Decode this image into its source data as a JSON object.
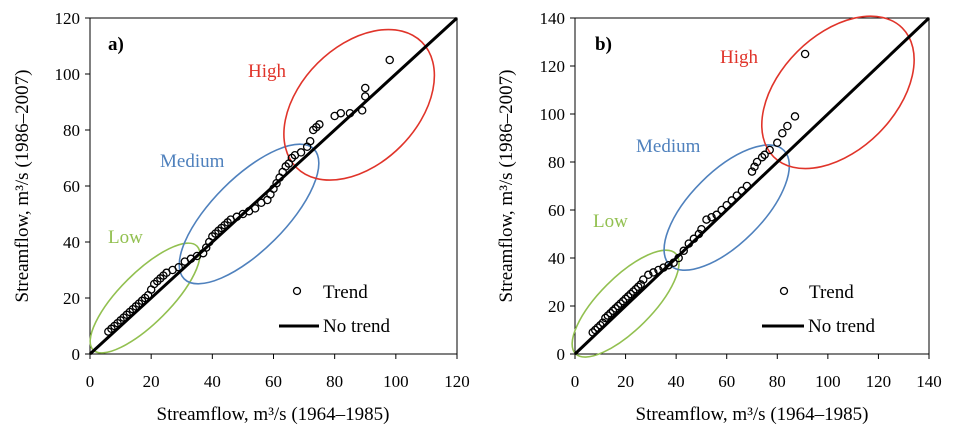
{
  "chart_data": [
    {
      "type": "scatter",
      "panel_label": "a)",
      "xlabel": "Streamflow, m³/s (1964–1985)",
      "ylabel": "Streamflow, m³/s (1986–2007)",
      "xlim": [
        0,
        120
      ],
      "ylim": [
        0,
        120
      ],
      "xticks": [
        "0",
        "20",
        "40",
        "60",
        "80",
        "100",
        "120"
      ],
      "yticks": [
        "0",
        "20",
        "40",
        "60",
        "80",
        "100",
        "120"
      ],
      "grid": false,
      "legend_placement": "bottom-right",
      "legend": {
        "trend": "Trend",
        "no_trend": "No trend"
      },
      "series": [
        {
          "name": "Trend",
          "marker": "open-circle",
          "points": [
            [
              6,
              8
            ],
            [
              7,
              9
            ],
            [
              8,
              10
            ],
            [
              9,
              11
            ],
            [
              10,
              12
            ],
            [
              11,
              13
            ],
            [
              12,
              14
            ],
            [
              13,
              15
            ],
            [
              14,
              16
            ],
            [
              15,
              17
            ],
            [
              16,
              18
            ],
            [
              17,
              19
            ],
            [
              18,
              20
            ],
            [
              19,
              21
            ],
            [
              20,
              23
            ],
            [
              21,
              25
            ],
            [
              22,
              26
            ],
            [
              23,
              27
            ],
            [
              24,
              28
            ],
            [
              25,
              29
            ],
            [
              27,
              30
            ],
            [
              29,
              31
            ],
            [
              31,
              33
            ],
            [
              33,
              34
            ],
            [
              35,
              35
            ],
            [
              37,
              36
            ],
            [
              38,
              38
            ],
            [
              39,
              40
            ],
            [
              40,
              42
            ],
            [
              41,
              43
            ],
            [
              42,
              44
            ],
            [
              43,
              45
            ],
            [
              44,
              46
            ],
            [
              45,
              47
            ],
            [
              46,
              48
            ],
            [
              48,
              49
            ],
            [
              50,
              50
            ],
            [
              52,
              51
            ],
            [
              54,
              52
            ],
            [
              56,
              54
            ],
            [
              58,
              55
            ],
            [
              59,
              57
            ],
            [
              60,
              59
            ],
            [
              61,
              61
            ],
            [
              62,
              63
            ],
            [
              63,
              65
            ],
            [
              64,
              67
            ],
            [
              65,
              68
            ],
            [
              66,
              70
            ],
            [
              67,
              71
            ],
            [
              69,
              72
            ],
            [
              71,
              74
            ],
            [
              72,
              76
            ],
            [
              73,
              80
            ],
            [
              74,
              81
            ],
            [
              75,
              82
            ],
            [
              80,
              85
            ],
            [
              82,
              86
            ],
            [
              85,
              86
            ],
            [
              89,
              87
            ],
            [
              90,
              92
            ],
            [
              90,
              95
            ],
            [
              98,
              105
            ]
          ]
        },
        {
          "name": "No trend",
          "type": "line",
          "points": [
            [
              0,
              0
            ],
            [
              120,
              120
            ]
          ]
        }
      ],
      "annotations": [
        {
          "label": "Low",
          "color": "#92c050",
          "region": {
            "cx": 18,
            "cy": 20,
            "rx": 24,
            "ry": 9,
            "angle": 45
          }
        },
        {
          "label": "Medium",
          "color": "#4f81bd",
          "region": {
            "cx": 52,
            "cy": 50,
            "rx": 30,
            "ry": 13,
            "angle": 45
          }
        },
        {
          "label": "High",
          "color": "#e0342a",
          "region": {
            "cx": 88,
            "cy": 89,
            "rx": 29,
            "ry": 21,
            "angle": 45
          }
        }
      ]
    },
    {
      "type": "scatter",
      "panel_label": "b)",
      "xlabel": "Streamflow, m³/s (1964–1985)",
      "ylabel": "Streamflow, m³/s (1986–2007)",
      "xlim": [
        0,
        140
      ],
      "ylim": [
        0,
        140
      ],
      "xticks": [
        "0",
        "20",
        "40",
        "60",
        "80",
        "100",
        "120",
        "140"
      ],
      "yticks": [
        "0",
        "20",
        "40",
        "60",
        "80",
        "100",
        "120",
        "140"
      ],
      "grid": false,
      "legend_placement": "bottom-right",
      "legend": {
        "trend": "Trend",
        "no_trend": "No trend"
      },
      "series": [
        {
          "name": "Trend",
          "marker": "open-circle",
          "points": [
            [
              7,
              9
            ],
            [
              8,
              10
            ],
            [
              9,
              11
            ],
            [
              10,
              12
            ],
            [
              11,
              13
            ],
            [
              12,
              15
            ],
            [
              13,
              16
            ],
            [
              14,
              17
            ],
            [
              15,
              18
            ],
            [
              16,
              19
            ],
            [
              17,
              20
            ],
            [
              18,
              21
            ],
            [
              19,
              22
            ],
            [
              20,
              23
            ],
            [
              21,
              24
            ],
            [
              22,
              25
            ],
            [
              23,
              26
            ],
            [
              24,
              27
            ],
            [
              25,
              28
            ],
            [
              26,
              29
            ],
            [
              27,
              31
            ],
            [
              29,
              33
            ],
            [
              31,
              34
            ],
            [
              33,
              35
            ],
            [
              35,
              36
            ],
            [
              37,
              37
            ],
            [
              39,
              38
            ],
            [
              41,
              40
            ],
            [
              43,
              43
            ],
            [
              45,
              46
            ],
            [
              47,
              48
            ],
            [
              49,
              50
            ],
            [
              50,
              52
            ],
            [
              52,
              56
            ],
            [
              54,
              57
            ],
            [
              56,
              58
            ],
            [
              58,
              60
            ],
            [
              60,
              62
            ],
            [
              62,
              64
            ],
            [
              64,
              66
            ],
            [
              66,
              68
            ],
            [
              68,
              70
            ],
            [
              70,
              76
            ],
            [
              71,
              78
            ],
            [
              72,
              80
            ],
            [
              74,
              82
            ],
            [
              75,
              83
            ],
            [
              77,
              85
            ],
            [
              80,
              88
            ],
            [
              82,
              92
            ],
            [
              84,
              95
            ],
            [
              87,
              99
            ],
            [
              91,
              125
            ]
          ]
        },
        {
          "name": "No trend",
          "type": "line",
          "points": [
            [
              0,
              0
            ],
            [
              140,
              140
            ]
          ]
        }
      ],
      "annotations": [
        {
          "label": "Low",
          "color": "#92c050",
          "region": {
            "cx": 20,
            "cy": 21,
            "rx": 28,
            "ry": 11,
            "angle": 45
          }
        },
        {
          "label": "Medium",
          "color": "#4f81bd",
          "region": {
            "cx": 60,
            "cy": 61,
            "rx": 32,
            "ry": 15,
            "angle": 45
          }
        },
        {
          "label": "High",
          "color": "#e0342a",
          "region": {
            "cx": 104,
            "cy": 109,
            "rx": 36,
            "ry": 24,
            "angle": 45
          }
        }
      ]
    }
  ]
}
